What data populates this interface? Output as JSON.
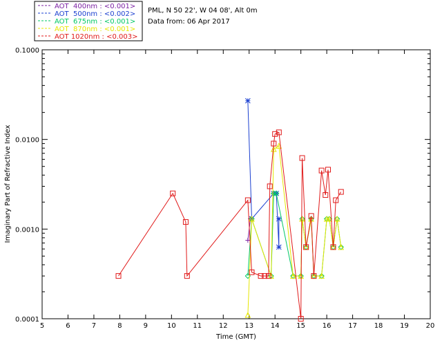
{
  "chart_data": {
    "type": "line",
    "header_lines": [
      "PML, N 50 22', W 04 08', Alt 0m",
      "Data from: 06 Apr 2017"
    ],
    "xlabel": "Time (GMT)",
    "ylabel": "Imaginary Part of Refractive Index",
    "xlim": [
      5,
      20
    ],
    "ylim": [
      0.0001,
      0.1
    ],
    "yscale": "log",
    "x_ticks": [
      "5",
      "6",
      "7",
      "8",
      "9",
      "10",
      "11",
      "12",
      "13",
      "14",
      "15",
      "16",
      "17",
      "18",
      "19",
      "20"
    ],
    "y_ticks": [
      {
        "value": 0.1,
        "label": "0.1000"
      },
      {
        "value": 0.01,
        "label": "0.0100"
      },
      {
        "value": 0.001,
        "label": "0.0010"
      },
      {
        "value": 0.0001,
        "label": "0.0001"
      }
    ],
    "legend_position": "top-left outside",
    "series": [
      {
        "name": "AOT  400nm : <0.001>",
        "color": "#7a1fa2",
        "marker": "plus",
        "points": [
          [
            12.95,
            0.00075
          ],
          [
            13.05,
            0.0013
          ]
        ]
      },
      {
        "name": "AOT  500nm : <0.002>",
        "color": "#1a3fd0",
        "marker": "asterisk",
        "points": [
          [
            12.95,
            0.027
          ],
          [
            13.1,
            0.0013
          ],
          [
            13.95,
            0.0025
          ],
          [
            14.05,
            0.0025
          ],
          [
            14.15,
            0.00063
          ],
          [
            14.15,
            0.0013
          ]
        ]
      },
      {
        "name": "AOT  675nm : <0.001>",
        "color": "#00c864",
        "marker": "diamond",
        "points": [
          [
            12.95,
            0.0003
          ],
          [
            13.1,
            0.0013
          ],
          [
            13.85,
            0.0003
          ],
          [
            13.95,
            0.0025
          ],
          [
            14.05,
            0.0025
          ],
          [
            14.7,
            0.0003
          ],
          [
            15.0,
            0.0003
          ],
          [
            15.05,
            0.0013
          ],
          [
            15.2,
            0.00063
          ],
          [
            15.4,
            0.0013
          ],
          [
            15.5,
            0.0003
          ],
          [
            15.8,
            0.0003
          ],
          [
            16.0,
            0.0013
          ],
          [
            16.1,
            0.0013
          ],
          [
            16.25,
            0.00063
          ],
          [
            16.4,
            0.0013
          ],
          [
            16.55,
            0.00063
          ]
        ]
      },
      {
        "name": "AOT  870nm : <0.001>",
        "color": "#e6e600",
        "marker": "triangle",
        "points": [
          [
            12.95,
            0.00011
          ],
          [
            13.1,
            0.0013
          ],
          [
            13.85,
            0.0003
          ],
          [
            13.95,
            0.0078
          ],
          [
            14.15,
            0.0085
          ],
          [
            14.7,
            0.0003
          ],
          [
            15.0,
            0.0003
          ],
          [
            15.05,
            0.0013
          ],
          [
            15.2,
            0.00063
          ],
          [
            15.4,
            0.0013
          ],
          [
            15.5,
            0.0003
          ],
          [
            15.8,
            0.0003
          ],
          [
            16.0,
            0.0013
          ],
          [
            16.1,
            0.0013
          ],
          [
            16.25,
            0.00063
          ],
          [
            16.4,
            0.0013
          ],
          [
            16.55,
            0.00063
          ]
        ]
      },
      {
        "name": "AOT 1020nm : <0.003>",
        "color": "#e01818",
        "marker": "square",
        "points": [
          [
            7.95,
            0.0003
          ],
          [
            10.05,
            0.0025
          ],
          [
            10.55,
            0.0012
          ],
          [
            10.6,
            0.0003
          ],
          [
            12.95,
            0.0021
          ],
          [
            13.1,
            0.00033
          ],
          [
            13.45,
            0.0003
          ],
          [
            13.6,
            0.0003
          ],
          [
            13.75,
            0.0003
          ],
          [
            13.8,
            0.003
          ],
          [
            13.95,
            0.009
          ],
          [
            14.0,
            0.0115
          ],
          [
            14.15,
            0.012
          ],
          [
            15.0,
            0.0001
          ],
          [
            15.05,
            0.0062
          ],
          [
            15.2,
            0.00063
          ],
          [
            15.4,
            0.0014
          ],
          [
            15.5,
            0.0003
          ],
          [
            15.8,
            0.0045
          ],
          [
            15.95,
            0.0024
          ],
          [
            16.05,
            0.0046
          ],
          [
            16.25,
            0.00063
          ],
          [
            16.35,
            0.0021
          ],
          [
            16.55,
            0.0026
          ]
        ]
      }
    ]
  }
}
